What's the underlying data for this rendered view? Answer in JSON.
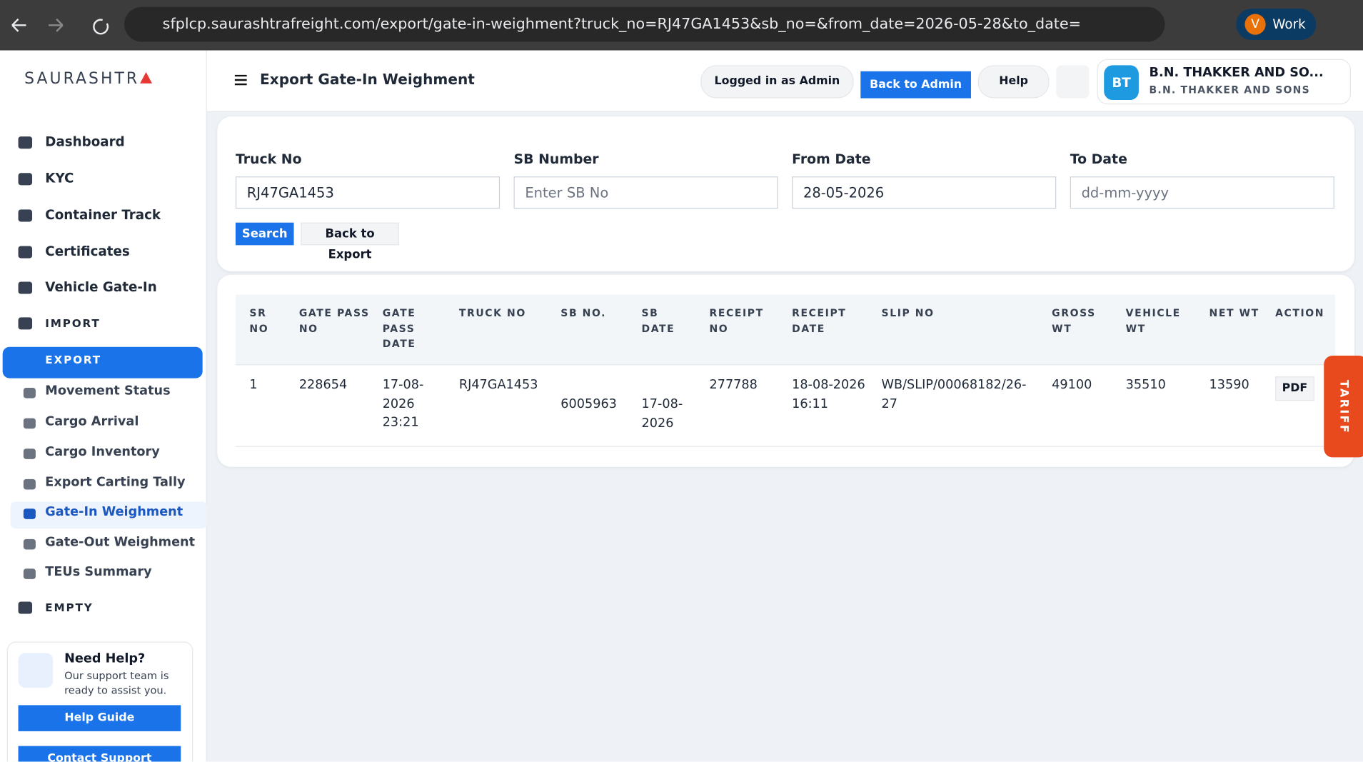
{
  "browser": {
    "url": "sfplcp.saurashtrafreight.com/export/gate-in-weighment?truck_no=RJ47GA1453&sb_no=&from_date=2026-05-28&to_date=",
    "profile_initial": "V",
    "profile_label": "Work"
  },
  "sidebar": {
    "logo": "SAURASHTR",
    "items": [
      "Dashboard",
      "KYC",
      "Container Track",
      "Certificates",
      "Vehicle Gate-In"
    ],
    "import": "IMPORT",
    "export": "EXPORT",
    "export_items": [
      "Movement Status",
      "Cargo Arrival",
      "Cargo Inventory",
      "Export Carting Tally",
      "Gate-In Weighment",
      "Gate-Out Weighment",
      "TEUs Summary"
    ],
    "empty": "EMPTY",
    "help": {
      "title": "Need Help?",
      "text": "Our support team is ready to assist you.",
      "guide": "Help Guide",
      "contact": "Contact Support"
    }
  },
  "header": {
    "title": "Export Gate-In Weighment",
    "logged_in": "Logged in as Admin",
    "back": "Back to Admin",
    "help": "Help",
    "avatar": "BT",
    "company": "B.N. THAKKER AND SO...",
    "company_sub": "B.N. THAKKER AND SONS"
  },
  "form": {
    "fields": [
      {
        "label": "Truck No",
        "value": "RJ47GA1453"
      },
      {
        "label": "SB Number",
        "placeholder": "Enter SB No"
      },
      {
        "label": "From Date",
        "value": "28-05-2026"
      },
      {
        "label": "To Date",
        "placeholder": "dd-mm-yyyy"
      }
    ],
    "search": "Search",
    "back": "Back to Export"
  },
  "table": {
    "headers": [
      "SR NO",
      "GATE PASS NO",
      "GATE PASS DATE",
      "TRUCK NO",
      "SB NO.",
      "SB DATE",
      "RECEIPT NO",
      "RECEIPT DATE",
      "SLIP NO",
      "GROSS WT",
      "VEHICLE WT",
      "NET WT",
      "ACTION"
    ],
    "rows": [
      [
        "1",
        "228654",
        "17-08-2026 23:21",
        "RJ47GA1453",
        "6005963",
        "17-08-2026",
        "277788",
        "18-08-2026 16:11",
        "WB/SLIP/00068182/26-27",
        "49100",
        "35510",
        "13590",
        "PDF"
      ]
    ]
  },
  "tariff": "TARIFF"
}
